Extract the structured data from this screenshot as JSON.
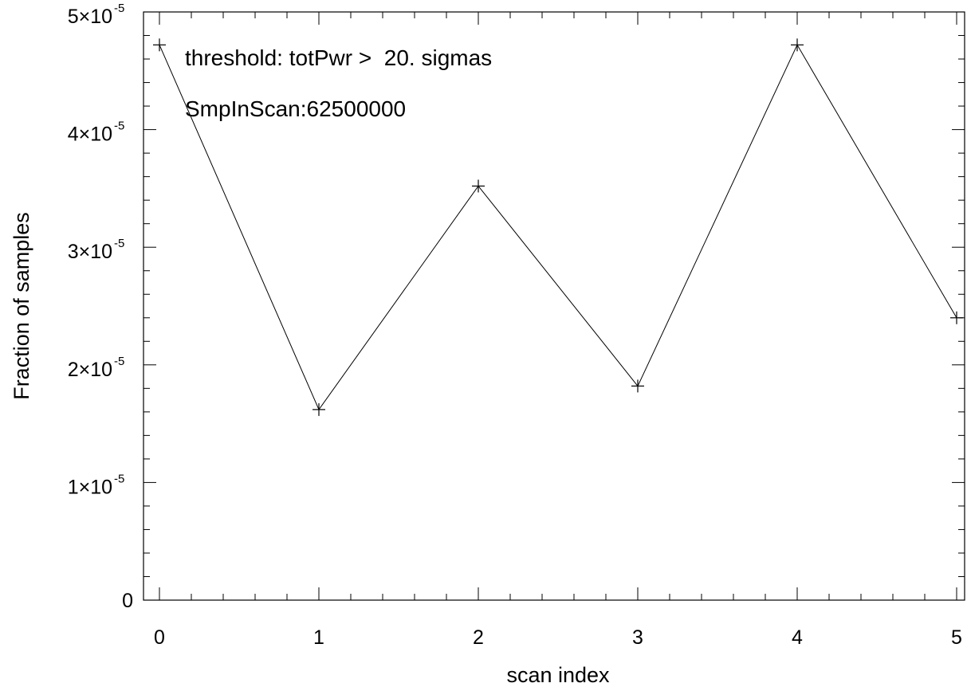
{
  "chart_data": {
    "type": "line",
    "title": "",
    "xlabel": "scan index",
    "ylabel": "Fraction of samples",
    "xlim": [
      -0.1,
      5.05
    ],
    "ylim": [
      0,
      5e-05
    ],
    "x_ticks": [
      0,
      1,
      2,
      3,
      4,
      5
    ],
    "x_tick_labels": [
      "0",
      "1",
      "2",
      "3",
      "4",
      "5"
    ],
    "y_ticks": [
      {
        "value": 0,
        "mantissa": "0",
        "exponent": ""
      },
      {
        "value": 1e-05,
        "mantissa": "1×10",
        "exponent": "-5"
      },
      {
        "value": 2e-05,
        "mantissa": "2×10",
        "exponent": "-5"
      },
      {
        "value": 3e-05,
        "mantissa": "3×10",
        "exponent": "-5"
      },
      {
        "value": 4e-05,
        "mantissa": "4×10",
        "exponent": "-5"
      },
      {
        "value": 5e-05,
        "mantissa": "5×10",
        "exponent": "-5"
      }
    ],
    "grid": false,
    "marker": "plus",
    "line_color": "#000000",
    "series": [
      {
        "x": [
          0,
          1,
          2,
          3,
          4,
          5
        ],
        "values": [
          4.72e-05,
          1.62e-05,
          3.52e-05,
          1.82e-05,
          4.72e-05,
          2.4e-05
        ]
      }
    ],
    "annotations": [
      "threshold: totPwr >  20. sigmas",
      "SmpInScan:62500000"
    ]
  }
}
